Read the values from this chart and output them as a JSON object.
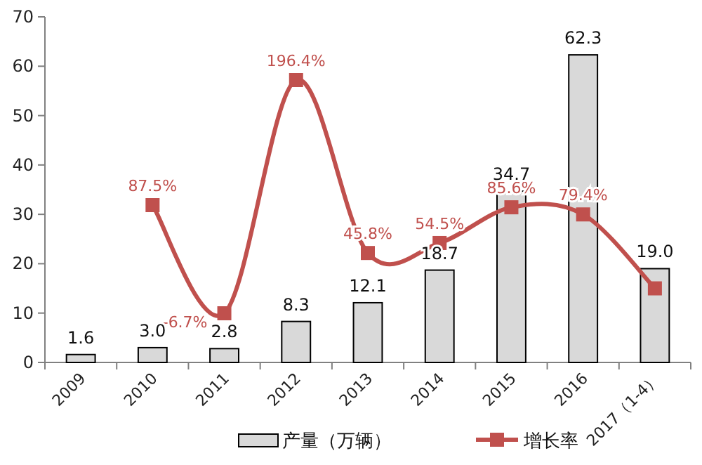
{
  "chart_data": {
    "type": "bar",
    "categories": [
      "2009",
      "2010",
      "2011",
      "2012",
      "2013",
      "2014",
      "2015",
      "2016",
      "2017（1-4）"
    ],
    "ylim": [
      0,
      70
    ],
    "yticks": [
      0,
      10,
      20,
      30,
      40,
      50,
      60,
      70
    ],
    "legend": "bottom",
    "series": [
      {
        "name": "产量（万辆）",
        "color": "#d9d9d9",
        "values": [
          1.6,
          3.0,
          2.8,
          8.3,
          12.1,
          18.7,
          34.7,
          62.3,
          19.0
        ],
        "value_labels": [
          "1.6",
          "3.0",
          "2.8",
          "8.3",
          "12.1",
          "18.7",
          "34.7",
          "62.3",
          "19.0"
        ]
      },
      {
        "name": "增长率",
        "type": "line",
        "axis": "y2",
        "color": "#c0504d",
        "marker": "square",
        "values": [
          null,
          87.5,
          -6.7,
          196.4,
          45.8,
          54.5,
          85.6,
          79.4,
          15
        ],
        "value_labels": [
          null,
          "87.5%",
          "-6.7%",
          "196.4%",
          "45.8%",
          "54.5%",
          "85.6%",
          "79.4%",
          null
        ]
      }
    ]
  }
}
